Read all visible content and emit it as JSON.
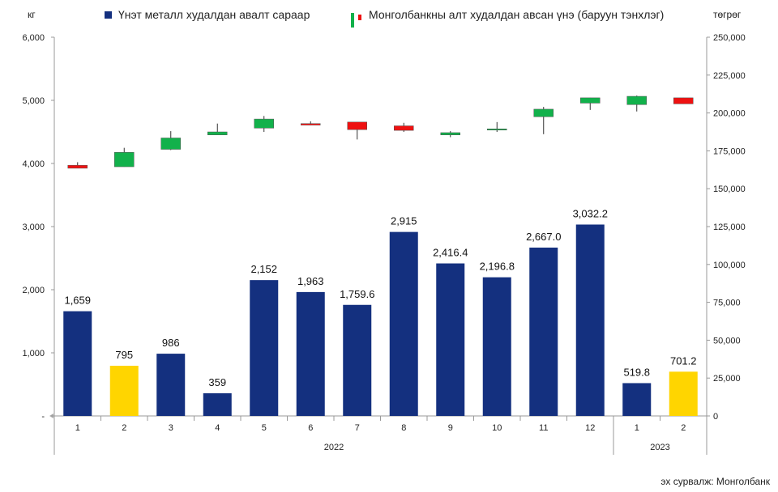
{
  "chart_data": {
    "type": "bar+candlestick",
    "left_unit": "кг",
    "right_unit": "төгрөг",
    "legend": {
      "bars": "Үнэт металл худалдан авалт сараар",
      "candles": "Монголбанкны алт худалдан авсан үнэ (баруун тэнхлэг)"
    },
    "source": "эх сурвалж: Монголбанк",
    "left_axis": {
      "min": 0,
      "max": 6000,
      "ticks": [
        {
          "v": 0,
          "label": "-"
        },
        {
          "v": 1000,
          "label": "1,000"
        },
        {
          "v": 2000,
          "label": "2,000"
        },
        {
          "v": 3000,
          "label": "3,000"
        },
        {
          "v": 4000,
          "label": "4,000"
        },
        {
          "v": 5000,
          "label": "5,000"
        },
        {
          "v": 6000,
          "label": "6,000"
        }
      ]
    },
    "right_axis": {
      "min": 0,
      "max": 250000,
      "ticks": [
        {
          "v": 0,
          "label": "0"
        },
        {
          "v": 25000,
          "label": "25,000"
        },
        {
          "v": 50000,
          "label": "50,000"
        },
        {
          "v": 75000,
          "label": "75,000"
        },
        {
          "v": 100000,
          "label": "100,000"
        },
        {
          "v": 125000,
          "label": "125,000"
        },
        {
          "v": 150000,
          "label": "150,000"
        },
        {
          "v": 175000,
          "label": "175,000"
        },
        {
          "v": 200000,
          "label": "200,000"
        },
        {
          "v": 225000,
          "label": "225,000"
        },
        {
          "v": 250000,
          "label": "250,000"
        }
      ]
    },
    "months": [
      "1",
      "2",
      "3",
      "4",
      "5",
      "6",
      "7",
      "8",
      "9",
      "10",
      "11",
      "12",
      "1",
      "2"
    ],
    "years": [
      {
        "label": "2022",
        "start": 0,
        "end": 11
      },
      {
        "label": "2023",
        "start": 12,
        "end": 13
      }
    ],
    "bars": [
      {
        "value": 1659,
        "label": "1,659",
        "highlight": false
      },
      {
        "value": 795,
        "label": "795",
        "highlight": true
      },
      {
        "value": 986,
        "label": "986",
        "highlight": false
      },
      {
        "value": 359,
        "label": "359",
        "highlight": false
      },
      {
        "value": 2152,
        "label": "2,152",
        "highlight": false
      },
      {
        "value": 1963,
        "label": "1,963",
        "highlight": false
      },
      {
        "value": 1759.6,
        "label": "1,759.6",
        "highlight": false
      },
      {
        "value": 2915,
        "label": "2,915",
        "highlight": false
      },
      {
        "value": 2416.4,
        "label": "2,416.4",
        "highlight": false
      },
      {
        "value": 2196.8,
        "label": "2,196.8",
        "highlight": false
      },
      {
        "value": 2667.0,
        "label": "2,667.0",
        "highlight": false
      },
      {
        "value": 3032.2,
        "label": "3,032.2",
        "highlight": false
      },
      {
        "value": 519.8,
        "label": "519.8",
        "highlight": false
      },
      {
        "value": 701.2,
        "label": "701.2",
        "highlight": true
      }
    ],
    "candles": [
      {
        "open": 165500,
        "close": 163500,
        "high": 167500,
        "low": 163500
      },
      {
        "open": 164500,
        "close": 174000,
        "high": 177000,
        "low": 164500
      },
      {
        "open": 176000,
        "close": 183500,
        "high": 188000,
        "low": 175500
      },
      {
        "open": 185500,
        "close": 187500,
        "high": 193000,
        "low": 185500
      },
      {
        "open": 190000,
        "close": 196000,
        "high": 198000,
        "low": 187500
      },
      {
        "open": 193000,
        "close": 192000,
        "high": 194500,
        "low": 192000
      },
      {
        "open": 194000,
        "close": 189000,
        "high": 194000,
        "low": 182500
      },
      {
        "open": 191500,
        "close": 188500,
        "high": 193500,
        "low": 187500
      },
      {
        "open": 185500,
        "close": 187000,
        "high": 188000,
        "low": 184000
      },
      {
        "open": 189000,
        "close": 189500,
        "high": 194000,
        "low": 187500
      },
      {
        "open": 197500,
        "close": 202500,
        "high": 204000,
        "low": 186000
      },
      {
        "open": 206500,
        "close": 210000,
        "high": 210000,
        "low": 202000
      },
      {
        "open": 205500,
        "close": 211000,
        "high": 211500,
        "low": 201000
      },
      {
        "open": 210000,
        "close": 206000,
        "high": 210000,
        "low": 206000
      }
    ],
    "colors": {
      "bar": "#14307f",
      "bar_highlight": "#ffd500",
      "candle_up": "#12b14b",
      "candle_down": "#ee1111",
      "axis": "#999999",
      "wick": "#333333"
    }
  }
}
